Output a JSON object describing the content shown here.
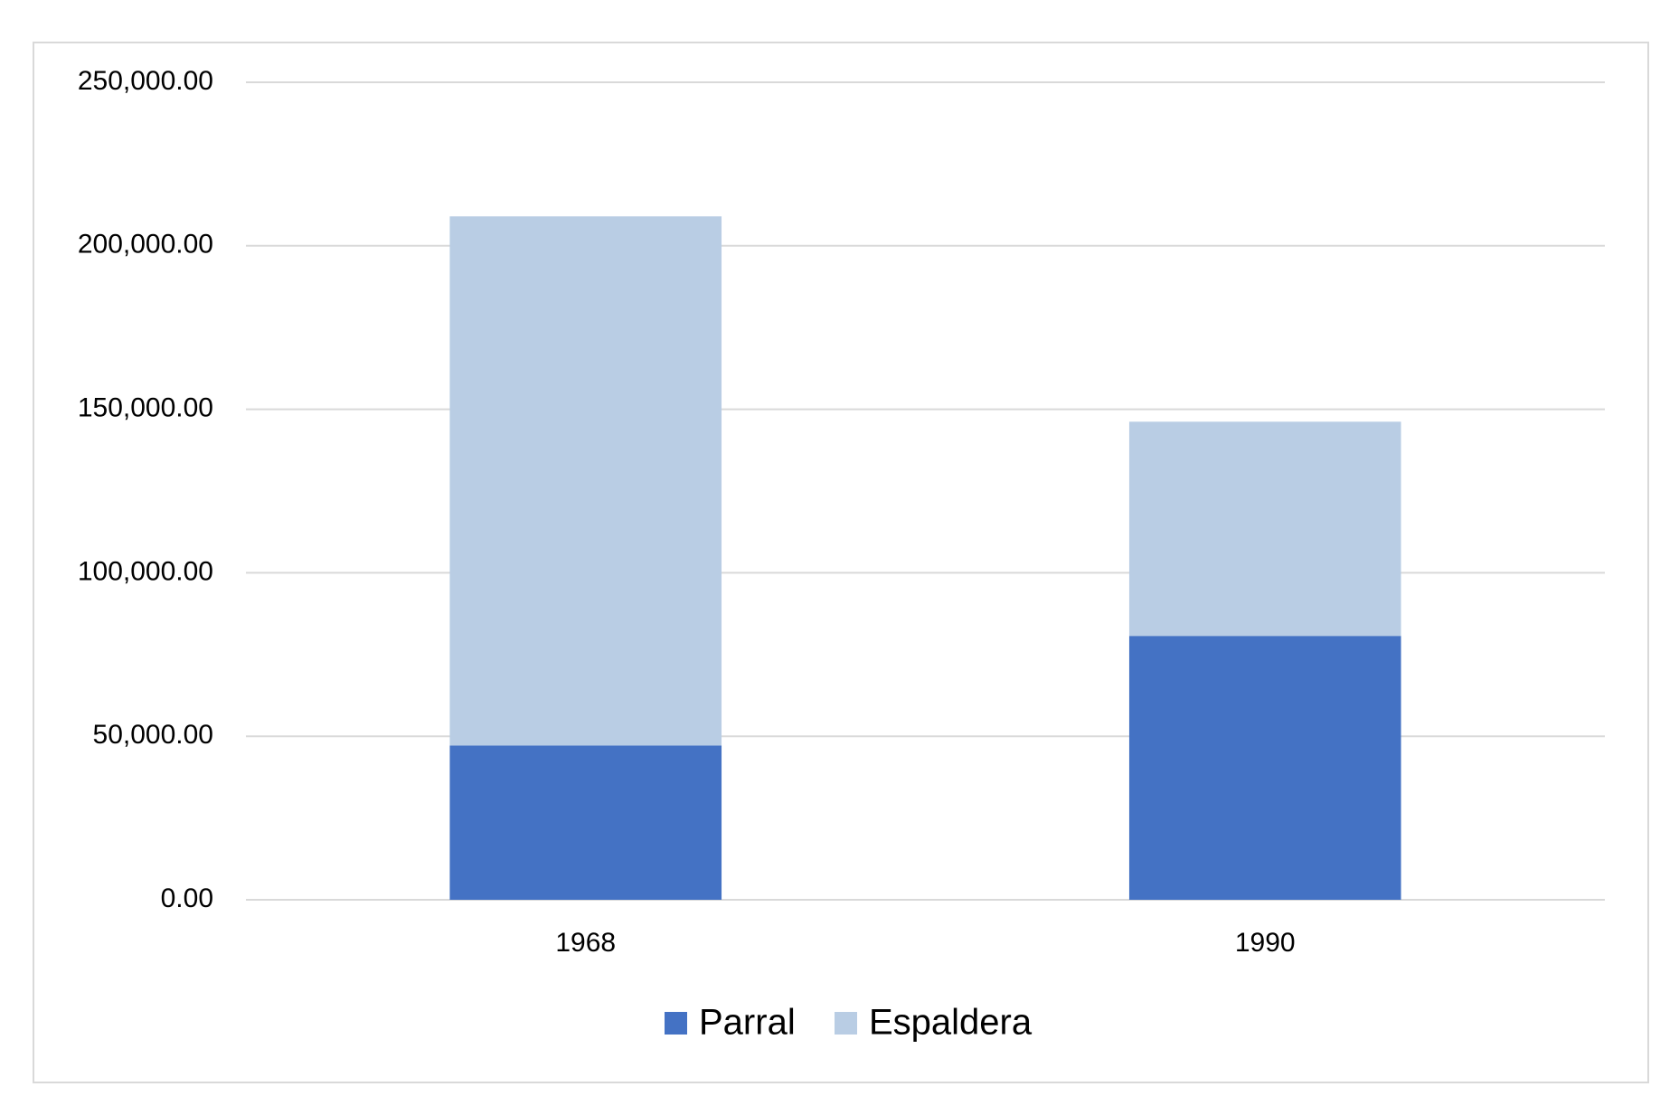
{
  "chart_data": {
    "type": "stacked-bar",
    "categories": [
      "1968",
      "1990"
    ],
    "series": [
      {
        "name": "Parral",
        "color": "#4472c4",
        "values": [
          47200,
          80700
        ]
      },
      {
        "name": "Espaldera",
        "color": "#b9cde4",
        "values": [
          161800,
          65500
        ]
      }
    ],
    "ylim": [
      0,
      250000
    ],
    "yticks": [
      {
        "value": 0,
        "label": "0.00"
      },
      {
        "value": 50000,
        "label": "50,000.00"
      },
      {
        "value": 100000,
        "label": "100,000.00"
      },
      {
        "value": 150000,
        "label": "150,000.00"
      },
      {
        "value": 200000,
        "label": "200,000.00"
      },
      {
        "value": 250000,
        "label": "250,000.00"
      }
    ],
    "grid": true,
    "legend": "bottom"
  }
}
